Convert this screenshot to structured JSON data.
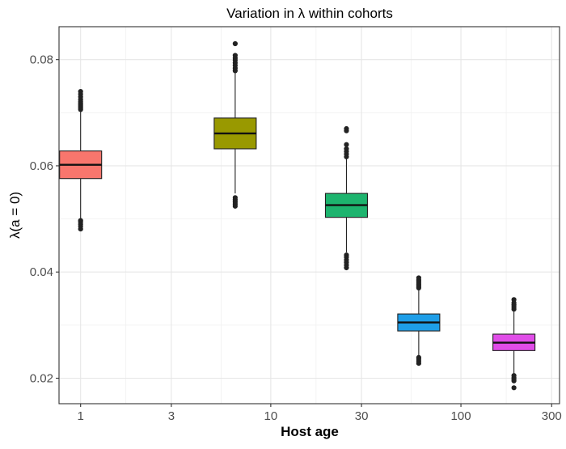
{
  "chart_data": {
    "type": "boxplot",
    "title": "Variation in  λ  within cohorts",
    "xlabel": "Host age",
    "ylabel": "λ(a = 0)",
    "x_scale": "log10",
    "xlim": [
      0.77,
      330
    ],
    "ylim": [
      0.0152,
      0.0862
    ],
    "x_ticks": [
      {
        "value": 1,
        "label": "1"
      },
      {
        "value": 3,
        "label": "3"
      },
      {
        "value": 10,
        "label": "10"
      },
      {
        "value": 30,
        "label": "30"
      },
      {
        "value": 100,
        "label": "100"
      },
      {
        "value": 300,
        "label": "300"
      }
    ],
    "x_minor_ticks": [
      1.73,
      5.48,
      17.3,
      54.8,
      173
    ],
    "y_ticks": [
      {
        "value": 0.02,
        "label": "0.02"
      },
      {
        "value": 0.04,
        "label": "0.04"
      },
      {
        "value": 0.06,
        "label": "0.06"
      },
      {
        "value": 0.08,
        "label": "0.08"
      }
    ],
    "y_minor_ticks": [
      0.03,
      0.05,
      0.07
    ],
    "grid": true,
    "legend": "none",
    "series": [
      {
        "name": "1",
        "x": 1,
        "color": "#F8766D",
        "q1": 0.0576,
        "median": 0.0602,
        "q3": 0.0628,
        "whisker_low": 0.05,
        "whisker_high": 0.0703,
        "outliers": [
          0.0481,
          0.0486,
          0.049,
          0.0494,
          0.0497,
          0.0706,
          0.0709,
          0.0712,
          0.0715,
          0.0718,
          0.0721,
          0.0725,
          0.073,
          0.0735,
          0.074
        ]
      },
      {
        "name": "6.5",
        "x": 6.5,
        "color": "#999900",
        "q1": 0.0632,
        "median": 0.0661,
        "q3": 0.069,
        "whisker_low": 0.0548,
        "whisker_high": 0.0777,
        "outliers": [
          0.0524,
          0.0528,
          0.0532,
          0.0536,
          0.054,
          0.0779,
          0.0784,
          0.0789,
          0.0794,
          0.0799,
          0.0803,
          0.0808,
          0.083
        ]
      },
      {
        "name": "25",
        "x": 25,
        "color": "#1DB46E",
        "q1": 0.0503,
        "median": 0.0526,
        "q3": 0.0548,
        "whisker_low": 0.0437,
        "whisker_high": 0.0614,
        "outliers": [
          0.0408,
          0.0413,
          0.0418,
          0.0423,
          0.0428,
          0.0432,
          0.0617,
          0.0622,
          0.0627,
          0.0632,
          0.064,
          0.0666,
          0.067
        ]
      },
      {
        "name": "60",
        "x": 60,
        "color": "#1E9EE8",
        "q1": 0.0289,
        "median": 0.0305,
        "q3": 0.0321,
        "whisker_low": 0.024,
        "whisker_high": 0.0368,
        "outliers": [
          0.0228,
          0.0232,
          0.0236,
          0.0239,
          0.037,
          0.0373,
          0.0376,
          0.0379,
          0.0382,
          0.0385,
          0.0389
        ]
      },
      {
        "name": "190",
        "x": 190,
        "color": "#E04DE8",
        "q1": 0.0252,
        "median": 0.0267,
        "q3": 0.0283,
        "whisker_low": 0.0208,
        "whisker_high": 0.0327,
        "outliers": [
          0.0182,
          0.0195,
          0.0198,
          0.0201,
          0.0205,
          0.033,
          0.0334,
          0.0338,
          0.0342,
          0.0348
        ]
      }
    ]
  }
}
